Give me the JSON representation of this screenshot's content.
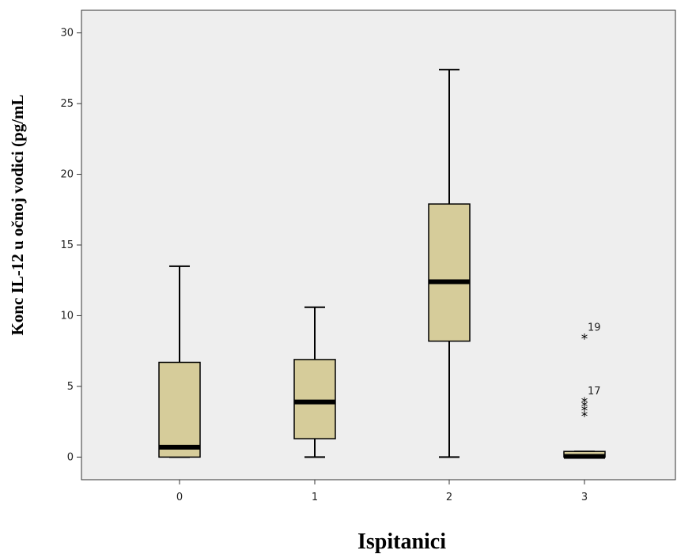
{
  "chart_data": {
    "type": "boxplot",
    "xlabel": "Ispitanici",
    "ylabel": "Konc IL-12 u očnoj vodici (pg/mL",
    "ylim": [
      -1.6,
      31.6
    ],
    "yticks": [
      0,
      5,
      10,
      15,
      20,
      25,
      30
    ],
    "categories": [
      "0",
      "1",
      "2",
      "3"
    ],
    "boxes": [
      {
        "category": "0",
        "min": 0,
        "q1": 0,
        "median": 0.7,
        "q3": 6.7,
        "max": 13.5
      },
      {
        "category": "1",
        "min": 0,
        "q1": 1.3,
        "median": 3.9,
        "q3": 6.9,
        "max": 10.6
      },
      {
        "category": "2",
        "min": 0,
        "q1": 8.2,
        "median": 12.4,
        "q3": 17.9,
        "max": 27.4
      },
      {
        "category": "3",
        "min": 0,
        "q1": 0,
        "median": 0.05,
        "q3": 0.4,
        "max": 0.4
      }
    ],
    "outliers": [
      {
        "category": "3",
        "value": 8.5,
        "label": "19"
      },
      {
        "category": "3",
        "value": 4.0,
        "label": "17"
      },
      {
        "category": "3",
        "value": 3.7,
        "label": ""
      },
      {
        "category": "3",
        "value": 3.4,
        "label": ""
      },
      {
        "category": "3",
        "value": 3.0,
        "label": ""
      }
    ],
    "box_color": "#d6cc9a",
    "plot_background": "#eeeeee",
    "outlier_marker": "*"
  }
}
